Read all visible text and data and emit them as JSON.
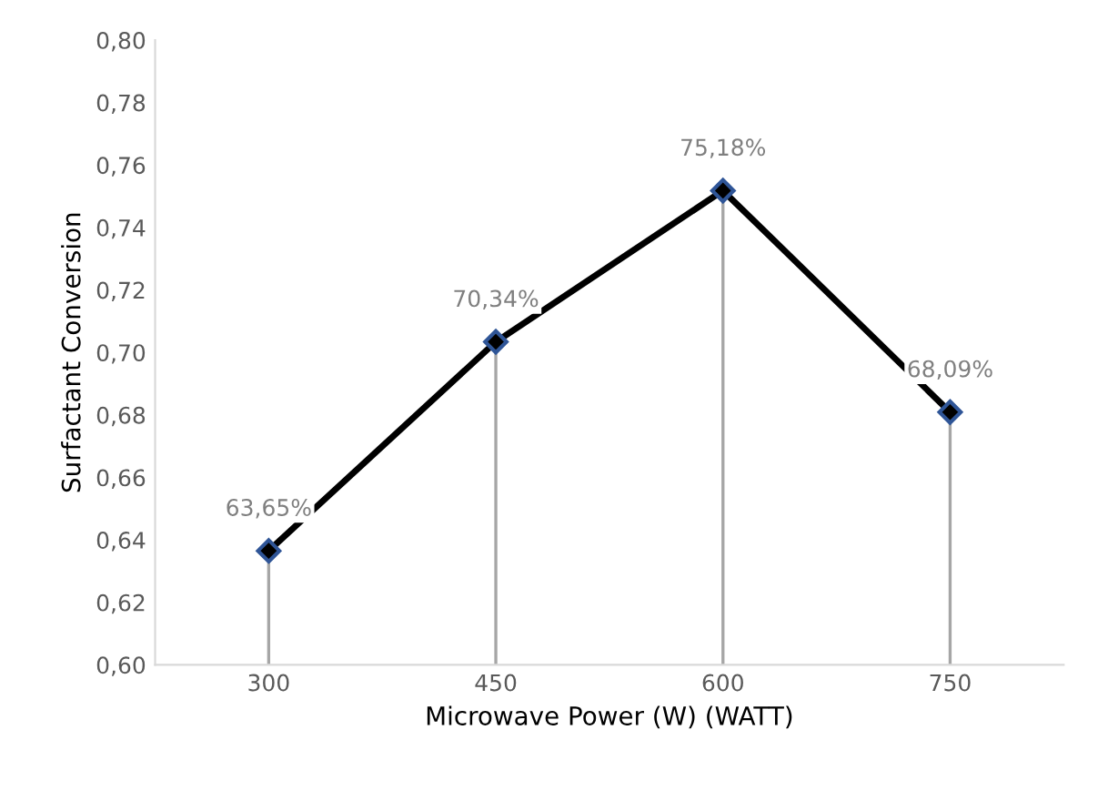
{
  "chart_data": {
    "type": "line",
    "xlabel": "Microwave Power (W) (WATT)",
    "ylabel": "Surfactant Conversion",
    "categories": [
      "300",
      "450",
      "600",
      "750"
    ],
    "series": [
      {
        "type": "lollipop",
        "color": "#000000",
        "marker": "diamond",
        "values": [
          0.6365,
          0.7034,
          0.7518,
          0.6809
        ],
        "value_labels": [
          "63,65%",
          "70,34%",
          "75,18%",
          "68,09%"
        ]
      },
      {
        "color": "#000000",
        "marker": "none",
        "values": [
          0.6365,
          0.7034,
          0.7518,
          0.6809
        ]
      }
    ],
    "ylim": [
      0.6,
      0.8
    ],
    "yticks": [
      {
        "value": 0.6,
        "label": "0,60"
      },
      {
        "value": 0.62,
        "label": "0,62"
      },
      {
        "value": 0.64,
        "label": "0,64"
      },
      {
        "value": 0.66,
        "label": "0,66"
      },
      {
        "value": 0.68,
        "label": "0,68"
      },
      {
        "value": 0.7,
        "label": "0,70"
      },
      {
        "value": 0.72,
        "label": "0,72"
      },
      {
        "value": 0.74,
        "label": "0,74"
      },
      {
        "value": 0.76,
        "label": "0,76"
      },
      {
        "value": 0.78,
        "label": "0,78"
      },
      {
        "value": 0.8,
        "label": "0,80"
      }
    ],
    "legend": false
  }
}
